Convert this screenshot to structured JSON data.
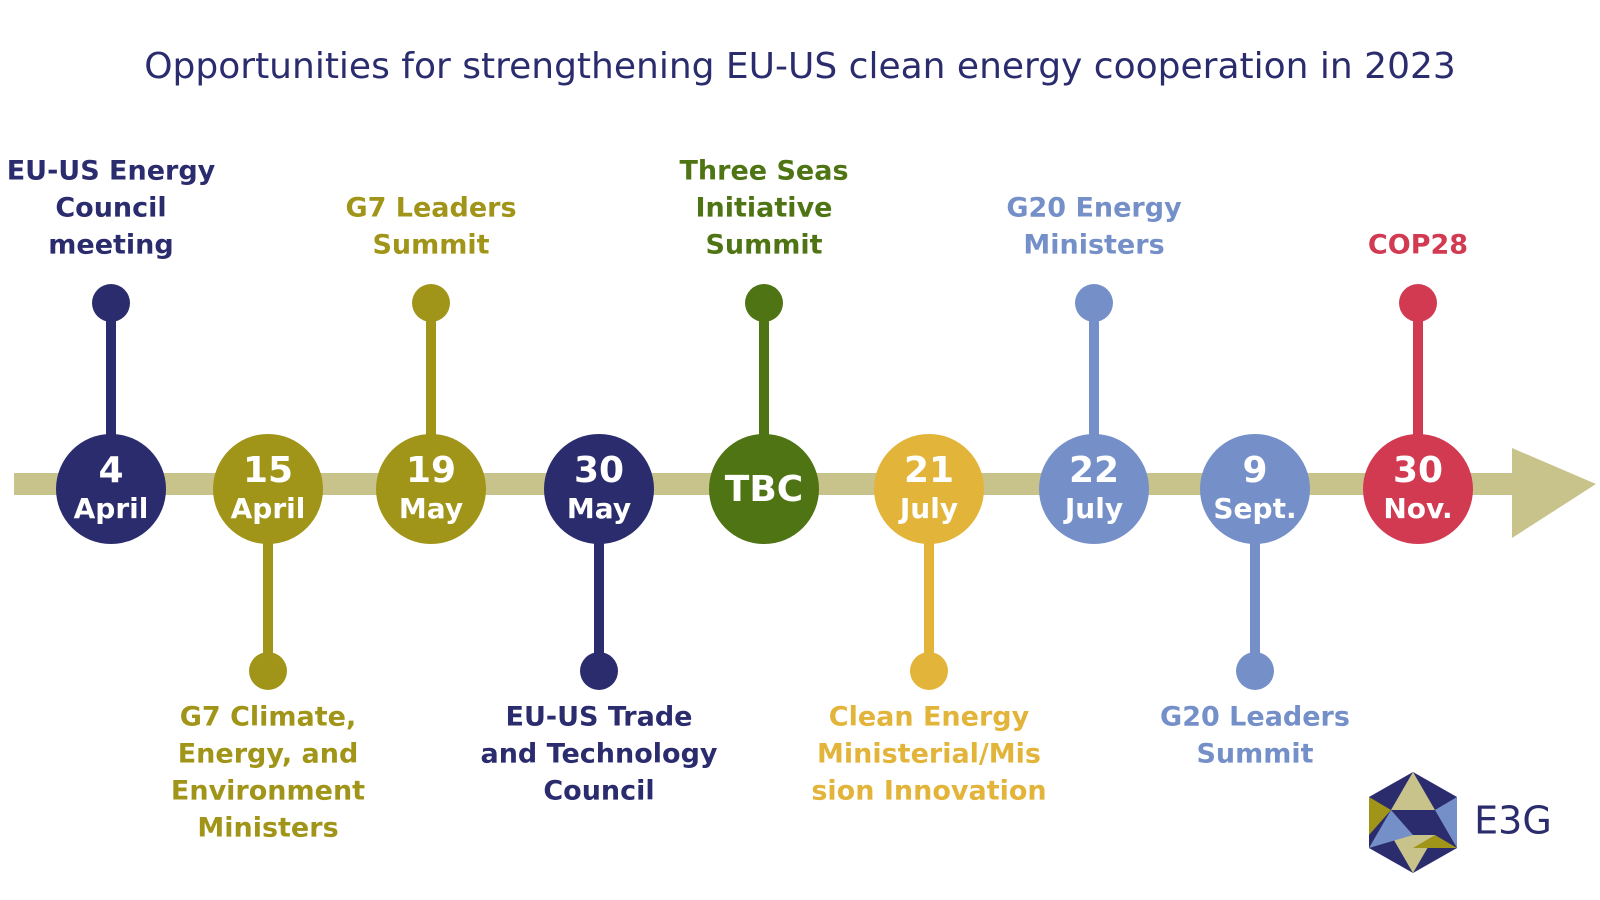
{
  "header": {
    "title": "Opportunities for strengthening EU-US clean energy cooperation in 2023"
  },
  "events": [
    {
      "day": "4",
      "month": "April",
      "label": [
        "EU-US Energy",
        "Council",
        "meeting"
      ],
      "side": "up",
      "color": "#2b2c6e"
    },
    {
      "day": "15",
      "month": "April",
      "label": [
        "G7 Climate,",
        "Energy, and",
        "Environment",
        "Ministers"
      ],
      "side": "down",
      "color": "#a09518"
    },
    {
      "day": "19",
      "month": "May",
      "label": [
        "G7 Leaders",
        "Summit"
      ],
      "side": "up",
      "color": "#a09518"
    },
    {
      "day": "30",
      "month": "May",
      "label": [
        "EU-US Trade",
        "and Technology",
        "Council"
      ],
      "side": "down",
      "color": "#2b2c6e"
    },
    {
      "day": "TBC",
      "label": [
        "Three Seas",
        "Initiative",
        "Summit"
      ],
      "side": "up",
      "color": "#4e7414"
    },
    {
      "day": "21",
      "month": "July",
      "label": [
        "Clean Energy",
        "Ministerial/Mis",
        "sion Innovation"
      ],
      "side": "down",
      "color": "#e3b43a"
    },
    {
      "day": "22",
      "month": "July",
      "label": [
        "G20 Energy",
        "Ministers"
      ],
      "side": "up",
      "color": "#7590c8"
    },
    {
      "day": "9",
      "month": "Sept.",
      "label": [
        "G20 Leaders",
        "Summit"
      ],
      "side": "down",
      "color": "#7590c8"
    },
    {
      "day": "30",
      "month": "Nov.",
      "label": [
        "COP28"
      ],
      "side": "up",
      "color": "#d23a52"
    }
  ],
  "logo": {
    "text": "E3G"
  }
}
